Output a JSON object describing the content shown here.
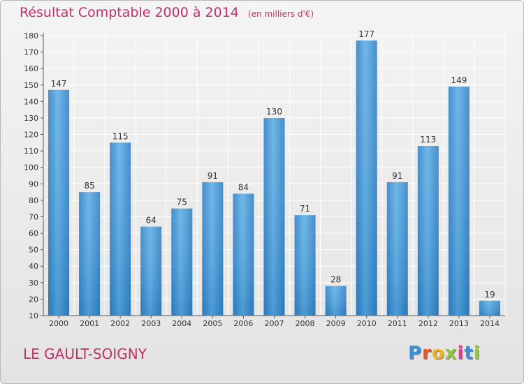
{
  "chart_data": {
    "type": "bar",
    "title": "Résultat Comptable 2000 à 2014",
    "subtitle": "(en milliers d'€)",
    "categories": [
      "2000",
      "2001",
      "2002",
      "2003",
      "2004",
      "2005",
      "2006",
      "2007",
      "2008",
      "2009",
      "2010",
      "2011",
      "2012",
      "2013",
      "2014"
    ],
    "values": [
      147,
      85,
      115,
      64,
      75,
      91,
      84,
      130,
      71,
      28,
      177,
      91,
      113,
      149,
      19
    ],
    "ylim": [
      10,
      180
    ],
    "yticks": [
      10,
      20,
      30,
      40,
      50,
      60,
      70,
      80,
      90,
      100,
      110,
      120,
      130,
      140,
      150,
      160,
      170,
      180
    ],
    "grid": true,
    "bar_color": "#3d8fd0",
    "title_color": "#c0306a"
  },
  "commune": "LE GAULT-SOIGNY",
  "logo": {
    "letters": [
      {
        "char": "P",
        "color": "#3a8fd6"
      },
      {
        "char": "r",
        "color": "#e8562a"
      },
      {
        "char": "o",
        "color": "#f2b21b"
      },
      {
        "char": "x",
        "color": "#8cc63f"
      },
      {
        "char": "i",
        "color": "#e63a8a"
      },
      {
        "char": "t",
        "color": "#3a8fd6"
      },
      {
        "char": "i",
        "color": "#8cc63f"
      }
    ]
  }
}
